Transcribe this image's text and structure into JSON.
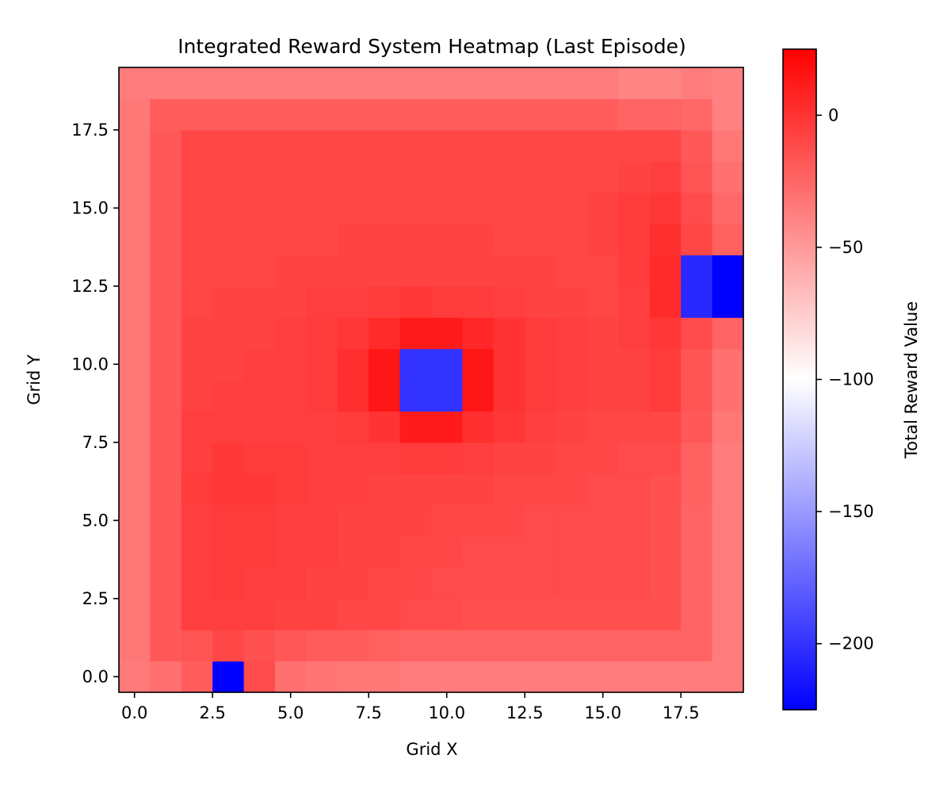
{
  "chart_data": {
    "type": "heatmap",
    "title": "Integrated Reward System Heatmap (Last Episode)",
    "xlabel": "Grid X",
    "ylabel": "Grid Y",
    "colorbar_label": "Total Reward Value",
    "colormap": "bwr",
    "color_low": "#0000ff",
    "color_mid": "#ffffff",
    "color_high": "#ff0000",
    "vmin": -225,
    "vmax": 25,
    "x_ticks": [
      0.0,
      2.5,
      5.0,
      7.5,
      10.0,
      12.5,
      15.0,
      17.5
    ],
    "x_tick_labels": [
      "0.0",
      "2.5",
      "5.0",
      "7.5",
      "10.0",
      "12.5",
      "15.0",
      "17.5"
    ],
    "y_ticks": [
      0.0,
      2.5,
      5.0,
      7.5,
      10.0,
      12.5,
      15.0,
      17.5
    ],
    "y_tick_labels": [
      "0.0",
      "2.5",
      "5.0",
      "7.5",
      "10.0",
      "12.5",
      "15.0",
      "17.5"
    ],
    "colorbar_ticks": [
      0,
      -50,
      -100,
      -150,
      -200
    ],
    "colorbar_tick_labels": [
      "0",
      "−50",
      "−100",
      "−150",
      "−200"
    ],
    "xlim": [
      -0.5,
      19.5
    ],
    "ylim": [
      -0.5,
      19.5
    ],
    "origin": "lower",
    "grid_size": [
      20,
      20
    ],
    "z_rows_bottom_to_top": [
      [
        -35,
        -30,
        -20,
        -225,
        -12,
        -30,
        -32,
        -34,
        -34,
        -36,
        -36,
        -36,
        -36,
        -36,
        -36,
        -36,
        -36,
        -36,
        -36,
        -36
      ],
      [
        -34,
        -18,
        -16,
        -10,
        -14,
        -18,
        -20,
        -20,
        -22,
        -24,
        -24,
        -24,
        -24,
        -24,
        -24,
        -24,
        -24,
        -24,
        -24,
        -36
      ],
      [
        -34,
        -18,
        -6,
        -6,
        -6,
        -8,
        -8,
        -10,
        -10,
        -12,
        -12,
        -14,
        -14,
        -14,
        -14,
        -14,
        -14,
        -14,
        -24,
        -36
      ],
      [
        -34,
        -18,
        -6,
        -4,
        -6,
        -6,
        -8,
        -8,
        -10,
        -10,
        -12,
        -12,
        -12,
        -12,
        -12,
        -12,
        -12,
        -14,
        -24,
        -36
      ],
      [
        -34,
        -18,
        -6,
        -4,
        -4,
        -6,
        -6,
        -8,
        -8,
        -10,
        -10,
        -12,
        -12,
        -12,
        -12,
        -12,
        -12,
        -14,
        -24,
        -36
      ],
      [
        -34,
        -18,
        -6,
        -4,
        -4,
        -6,
        -6,
        -8,
        -8,
        -8,
        -10,
        -10,
        -10,
        -12,
        -12,
        -12,
        -12,
        -14,
        -24,
        -36
      ],
      [
        -34,
        -18,
        -4,
        -2,
        -2,
        -4,
        -6,
        -6,
        -8,
        -8,
        -8,
        -8,
        -10,
        -10,
        -10,
        -12,
        -12,
        -14,
        -22,
        -36
      ],
      [
        -34,
        -18,
        -6,
        -2,
        -4,
        -4,
        -6,
        -6,
        -6,
        -4,
        -4,
        -6,
        -8,
        -8,
        -10,
        -10,
        -12,
        -12,
        -22,
        -36
      ],
      [
        -34,
        -18,
        -6,
        -6,
        -6,
        -6,
        -6,
        -4,
        0,
        12,
        12,
        2,
        -2,
        -6,
        -8,
        -10,
        -10,
        -10,
        -18,
        -34
      ],
      [
        -34,
        -18,
        -8,
        -6,
        -6,
        -6,
        -4,
        2,
        14,
        -200,
        -200,
        14,
        0,
        -4,
        -6,
        -8,
        -8,
        -4,
        -16,
        -30
      ],
      [
        -34,
        -18,
        -8,
        -8,
        -6,
        -6,
        -4,
        2,
        14,
        -200,
        -200,
        14,
        0,
        -4,
        -6,
        -8,
        -8,
        -4,
        -16,
        -30
      ],
      [
        -34,
        -18,
        -8,
        -8,
        -8,
        -6,
        -4,
        -2,
        4,
        12,
        12,
        6,
        0,
        -4,
        -6,
        -8,
        -6,
        -2,
        -12,
        -24
      ],
      [
        -34,
        -18,
        -10,
        -8,
        -8,
        -8,
        -6,
        -6,
        -4,
        -2,
        -4,
        -4,
        -6,
        -8,
        -8,
        -10,
        -6,
        4,
        -205,
        -225
      ],
      [
        -34,
        -18,
        -10,
        -10,
        -10,
        -8,
        -8,
        -8,
        -8,
        -8,
        -8,
        -8,
        -8,
        -8,
        -10,
        -10,
        -4,
        4,
        -205,
        -225
      ],
      [
        -34,
        -18,
        -10,
        -10,
        -10,
        -10,
        -10,
        -8,
        -8,
        -8,
        -8,
        -8,
        -10,
        -10,
        -10,
        -8,
        -4,
        2,
        -10,
        -22
      ],
      [
        -34,
        -18,
        -10,
        -10,
        -10,
        -10,
        -10,
        -10,
        -10,
        -10,
        -10,
        -10,
        -10,
        -10,
        -10,
        -8,
        -4,
        -2,
        -12,
        -26
      ],
      [
        -34,
        -18,
        -10,
        -10,
        -10,
        -10,
        -10,
        -10,
        -10,
        -10,
        -10,
        -10,
        -10,
        -10,
        -10,
        -10,
        -8,
        -6,
        -16,
        -30
      ],
      [
        -34,
        -18,
        -10,
        -10,
        -10,
        -10,
        -10,
        -10,
        -10,
        -10,
        -10,
        -10,
        -10,
        -10,
        -10,
        -10,
        -10,
        -10,
        -18,
        -34
      ],
      [
        -34,
        -20,
        -20,
        -20,
        -20,
        -20,
        -20,
        -20,
        -20,
        -20,
        -20,
        -20,
        -20,
        -20,
        -20,
        -20,
        -24,
        -24,
        -26,
        -38
      ],
      [
        -36,
        -36,
        -36,
        -36,
        -36,
        -36,
        -36,
        -36,
        -36,
        -36,
        -36,
        -36,
        -36,
        -36,
        -36,
        -36,
        -40,
        -40,
        -36,
        -38
      ]
    ]
  }
}
